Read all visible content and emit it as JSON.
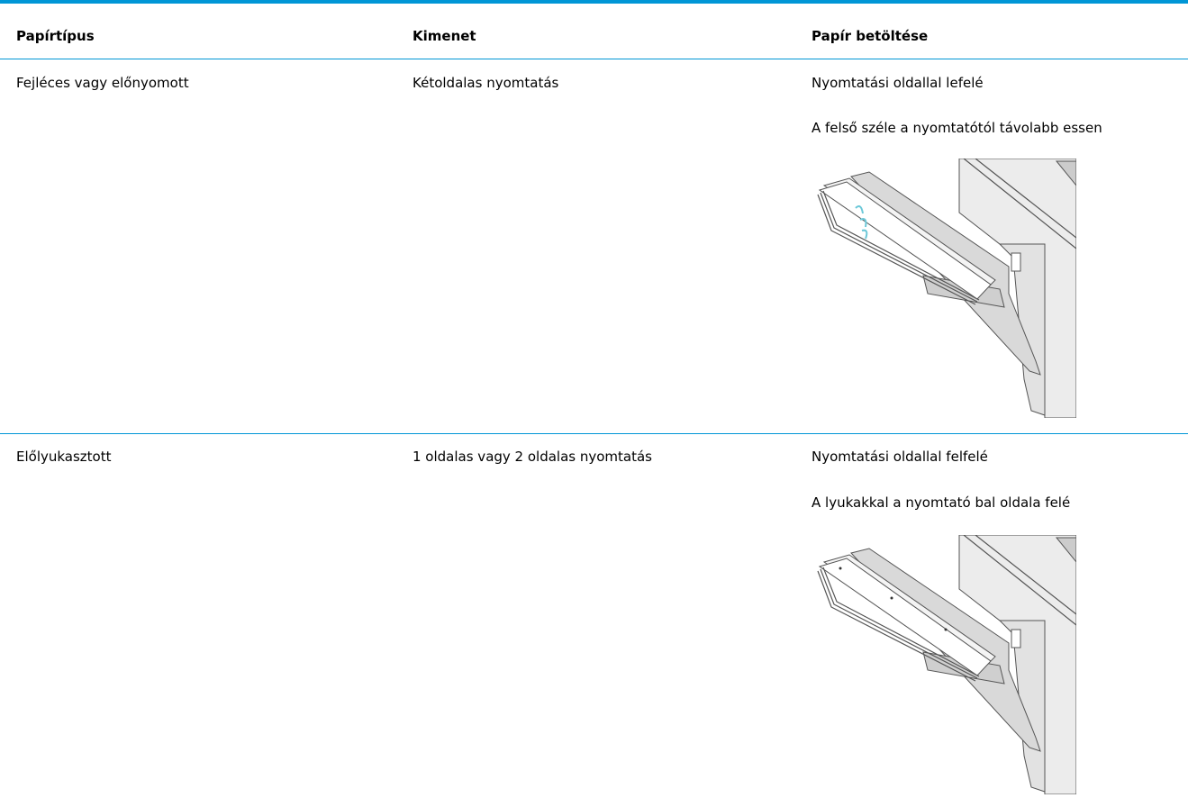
{
  "table": {
    "header": [
      "Papírtípus",
      "Kimenet",
      "Papír betöltése"
    ],
    "rows": [
      [
        "Fejléces vagy előnyomott",
        "Kétoldalas nyomtatás",
        [
          "Nyomtatási oldallal lefelé",
          "A felső széle a nyomtatótól távolabb essen"
        ]
      ],
      [
        "Előlyukasztott",
        "1 oldalas vagy 2 oldalas nyomtatás",
        [
          "Nyomtatási oldallal felfelé",
          "A lyukakkal a nyomtató bal oldala felé"
        ]
      ]
    ]
  }
}
